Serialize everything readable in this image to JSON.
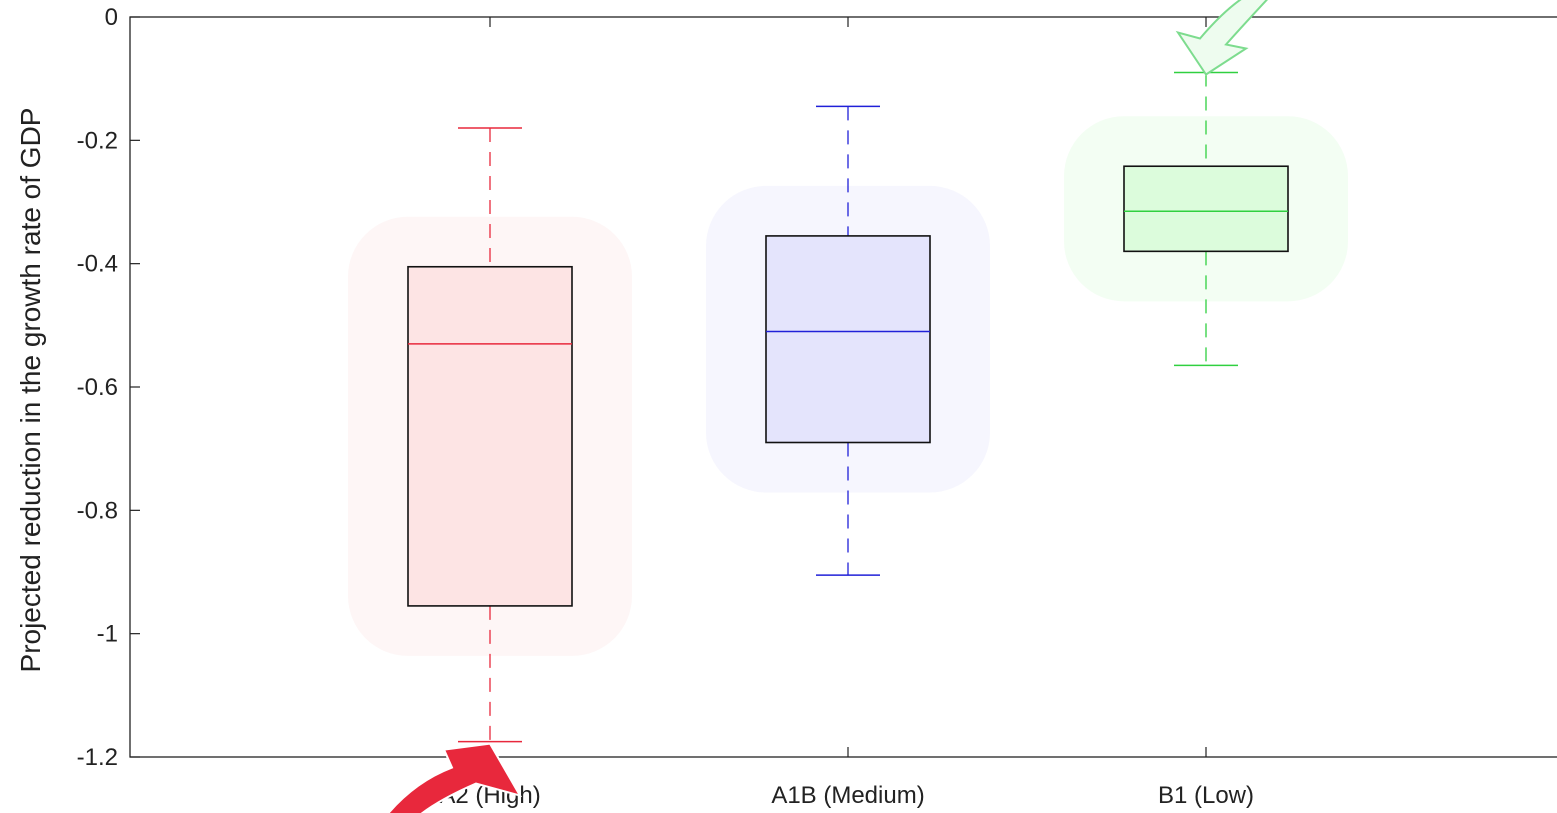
{
  "chart_data": {
    "type": "boxplot",
    "title": "",
    "xlabel": "",
    "ylabel": "Projected reduction in the growth rate of GDP",
    "ylim": [
      -1.2,
      0
    ],
    "yticks": [
      0,
      -0.2,
      -0.4,
      -0.6,
      -0.8,
      -1,
      -1.2
    ],
    "ytick_labels": [
      "0",
      "-0.2",
      "-0.4",
      "-0.6",
      "-0.8",
      "-1",
      "-1.2"
    ],
    "categories": [
      "A2 (High)",
      "A1B (Medium)",
      "B1 (Low)"
    ],
    "boxes": [
      {
        "name": "A2 (High)",
        "whisker_high": -0.18,
        "q3": -0.405,
        "median": -0.53,
        "q1": -0.955,
        "whisker_low": -1.175,
        "color": "#e8283c",
        "fill": "#fde4e4"
      },
      {
        "name": "A1B (Medium)",
        "whisker_high": -0.145,
        "q3": -0.355,
        "median": -0.51,
        "q1": -0.69,
        "whisker_low": -0.905,
        "color": "#2020d8",
        "fill": "#e4e4fc"
      },
      {
        "name": "B1 (Low)",
        "whisker_high": -0.09,
        "q3": -0.242,
        "median": -0.315,
        "q1": -0.38,
        "whisker_low": -0.565,
        "color": "#30d040",
        "fill": "#dcfcdc"
      }
    ],
    "grid": false,
    "legend": "none",
    "annotations": [
      {
        "type": "arrow",
        "target": "A2 (High) lower whisker",
        "color": "#e8283c"
      },
      {
        "type": "arrow",
        "target": "B1 (Low) upper whisker",
        "color": "#7ddc8e"
      }
    ]
  }
}
